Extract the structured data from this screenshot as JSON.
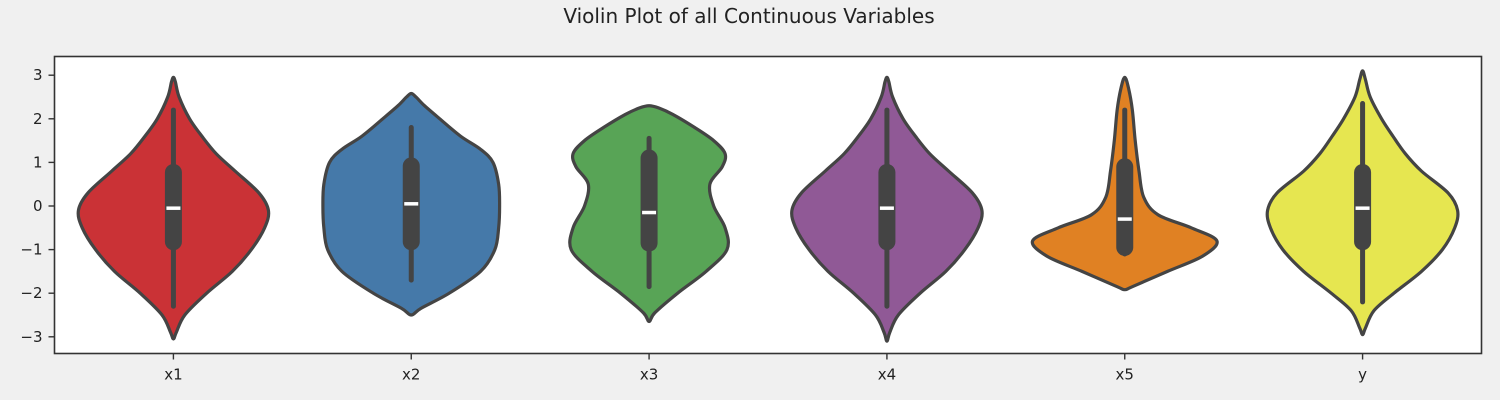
{
  "chart_data": {
    "type": "violin",
    "title": "Violin Plot of all Continuous Variables",
    "xlabel": "",
    "ylabel": "",
    "categories": [
      "x1",
      "x2",
      "x3",
      "x4",
      "x5",
      "y"
    ],
    "ylim": [
      -3.4,
      3.4
    ],
    "yticks": [
      -3,
      -2,
      -1,
      0,
      1,
      2,
      3
    ],
    "ytick_labels": [
      "−3",
      "−2",
      "−1",
      "0",
      "1",
      "2",
      "3"
    ],
    "grid": false,
    "legend": "none",
    "violins": [
      {
        "name": "x1",
        "color": "#ca3236",
        "whisker": [
          -2.3,
          2.2
        ],
        "quartiles": [
          -0.82,
          0.77
        ],
        "median": -0.05,
        "profile": [
          [
            -3.05,
            0.0
          ],
          [
            -2.9,
            0.03
          ],
          [
            -2.5,
            0.12
          ],
          [
            -2.0,
            0.35
          ],
          [
            -1.5,
            0.62
          ],
          [
            -1.0,
            0.82
          ],
          [
            -0.5,
            0.96
          ],
          [
            -0.1,
            1.0
          ],
          [
            0.3,
            0.9
          ],
          [
            0.8,
            0.65
          ],
          [
            1.2,
            0.45
          ],
          [
            1.6,
            0.3
          ],
          [
            2.0,
            0.17
          ],
          [
            2.5,
            0.06
          ],
          [
            2.85,
            0.02
          ],
          [
            2.95,
            0.0
          ]
        ]
      },
      {
        "name": "x2",
        "color": "#4579a9",
        "whisker": [
          -1.7,
          1.8
        ],
        "quartiles": [
          -0.82,
          0.92
        ],
        "median": 0.05,
        "profile": [
          [
            -2.5,
            0.0
          ],
          [
            -2.35,
            0.1
          ],
          [
            -2.0,
            0.4
          ],
          [
            -1.5,
            0.73
          ],
          [
            -1.0,
            0.88
          ],
          [
            -0.5,
            0.92
          ],
          [
            0.0,
            0.93
          ],
          [
            0.5,
            0.92
          ],
          [
            1.0,
            0.86
          ],
          [
            1.3,
            0.73
          ],
          [
            1.6,
            0.52
          ],
          [
            2.0,
            0.3
          ],
          [
            2.3,
            0.14
          ],
          [
            2.5,
            0.05
          ],
          [
            2.58,
            0.0
          ]
        ]
      },
      {
        "name": "x3",
        "color": "#58a456",
        "whisker": [
          -1.85,
          1.55
        ],
        "quartiles": [
          -0.85,
          1.1
        ],
        "median": -0.15,
        "profile": [
          [
            -2.65,
            0.0
          ],
          [
            -2.45,
            0.06
          ],
          [
            -2.0,
            0.3
          ],
          [
            -1.5,
            0.6
          ],
          [
            -1.0,
            0.82
          ],
          [
            -0.5,
            0.8
          ],
          [
            0.0,
            0.68
          ],
          [
            0.5,
            0.64
          ],
          [
            0.9,
            0.77
          ],
          [
            1.2,
            0.8
          ],
          [
            1.5,
            0.68
          ],
          [
            1.8,
            0.48
          ],
          [
            2.1,
            0.25
          ],
          [
            2.25,
            0.1
          ],
          [
            2.3,
            0.0
          ]
        ]
      },
      {
        "name": "x4",
        "color": "#905996",
        "whisker": [
          -2.3,
          2.2
        ],
        "quartiles": [
          -0.82,
          0.77
        ],
        "median": -0.05,
        "profile": [
          [
            -3.1,
            0.0
          ],
          [
            -2.9,
            0.03
          ],
          [
            -2.5,
            0.12
          ],
          [
            -2.0,
            0.35
          ],
          [
            -1.5,
            0.62
          ],
          [
            -1.0,
            0.82
          ],
          [
            -0.5,
            0.96
          ],
          [
            -0.1,
            1.0
          ],
          [
            0.3,
            0.9
          ],
          [
            0.8,
            0.65
          ],
          [
            1.2,
            0.45
          ],
          [
            1.6,
            0.3
          ],
          [
            2.0,
            0.17
          ],
          [
            2.5,
            0.06
          ],
          [
            2.85,
            0.02
          ],
          [
            2.95,
            0.0
          ]
        ]
      },
      {
        "name": "x5",
        "color": "#e08123",
        "whisker": [
          -1.1,
          2.2
        ],
        "quartiles": [
          -0.95,
          0.9
        ],
        "median": -0.3,
        "profile": [
          [
            -1.92,
            0.0
          ],
          [
            -1.85,
            0.08
          ],
          [
            -1.5,
            0.45
          ],
          [
            -1.15,
            0.82
          ],
          [
            -0.8,
            0.97
          ],
          [
            -0.5,
            0.7
          ],
          [
            -0.2,
            0.35
          ],
          [
            0.2,
            0.2
          ],
          [
            0.8,
            0.15
          ],
          [
            1.5,
            0.11
          ],
          [
            2.2,
            0.08
          ],
          [
            2.7,
            0.04
          ],
          [
            2.95,
            0.0
          ]
        ]
      },
      {
        "name": "y",
        "color": "#e6e650",
        "whisker": [
          -2.2,
          2.35
        ],
        "quartiles": [
          -0.82,
          0.77
        ],
        "median": -0.05,
        "profile": [
          [
            -2.95,
            0.0
          ],
          [
            -2.8,
            0.03
          ],
          [
            -2.4,
            0.12
          ],
          [
            -2.0,
            0.33
          ],
          [
            -1.5,
            0.62
          ],
          [
            -1.0,
            0.84
          ],
          [
            -0.5,
            0.97
          ],
          [
            -0.1,
            1.0
          ],
          [
            0.3,
            0.9
          ],
          [
            0.8,
            0.62
          ],
          [
            1.2,
            0.45
          ],
          [
            1.6,
            0.32
          ],
          [
            2.0,
            0.2
          ],
          [
            2.5,
            0.08
          ],
          [
            2.9,
            0.03
          ],
          [
            3.1,
            0.0
          ]
        ]
      }
    ]
  }
}
